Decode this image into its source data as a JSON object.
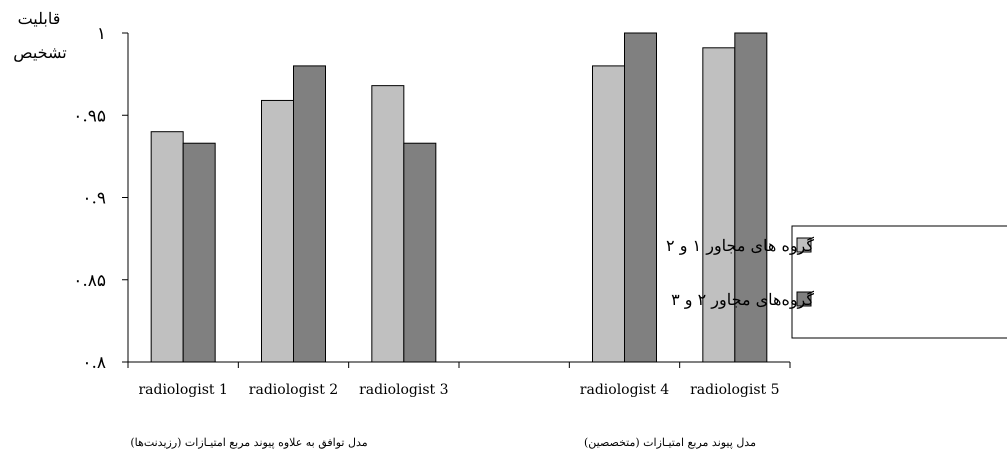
{
  "chart_data": {
    "type": "bar",
    "ylabel_lines": [
      "قابلیت",
      "تشخیص"
    ],
    "ylim": [
      0.8,
      1.0
    ],
    "yticks": [
      {
        "value": 1.0,
        "label": "۱"
      },
      {
        "value": 0.95,
        "label": "۰.۹۵"
      },
      {
        "value": 0.9,
        "label": "۰.۹"
      },
      {
        "value": 0.85,
        "label": "۰.۸۵"
      },
      {
        "value": 0.8,
        "label": "۰.۸"
      }
    ],
    "categories": [
      "radiologist 1",
      "radiologist 2",
      "radiologist 3",
      "radiologist 4",
      "radiologist 5"
    ],
    "group_labels": [
      "مدل توافق به علاوه پیوند مربع امتیـازات (رزیدنت‌ها)",
      "مدل پیوند مربع امتیـازات (متخصصین)"
    ],
    "series": [
      {
        "name": "گروه های مجاور ۱ و ۲",
        "color": "#c0c0c0",
        "values": [
          0.94,
          0.959,
          0.968,
          0.98,
          0.991
        ]
      },
      {
        "name": "گروه‌های مجاور ۲ و ۳",
        "color": "#808080",
        "values": [
          0.933,
          0.98,
          0.933,
          1.0,
          1.0
        ]
      }
    ],
    "grid": false,
    "legend_position": "right"
  }
}
